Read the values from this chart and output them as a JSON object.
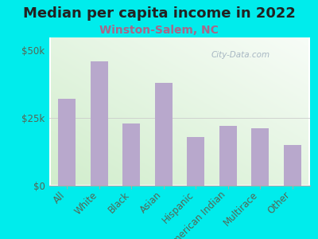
{
  "title": "Median per capita income in 2022",
  "subtitle": "Winston-Salem, NC",
  "categories": [
    "All",
    "White",
    "Black",
    "Asian",
    "Hispanic",
    "American Indian",
    "Multirace",
    "Other"
  ],
  "values": [
    32000,
    46000,
    23000,
    38000,
    18000,
    22000,
    21000,
    15000
  ],
  "bar_color": "#b8a8cc",
  "background_outer": "#00ecec",
  "title_color": "#222222",
  "subtitle_color": "#aa6688",
  "tick_color": "#556655",
  "yticks": [
    0,
    25000,
    50000
  ],
  "ytick_labels": [
    "$0",
    "$25k",
    "$50k"
  ],
  "ylim": [
    0,
    55000
  ],
  "watermark": "City-Data.com",
  "title_fontsize": 13,
  "subtitle_fontsize": 10,
  "tick_fontsize": 8.5,
  "grad_color_bottom": "#d0eccc",
  "grad_color_top": "#f8fcf8"
}
